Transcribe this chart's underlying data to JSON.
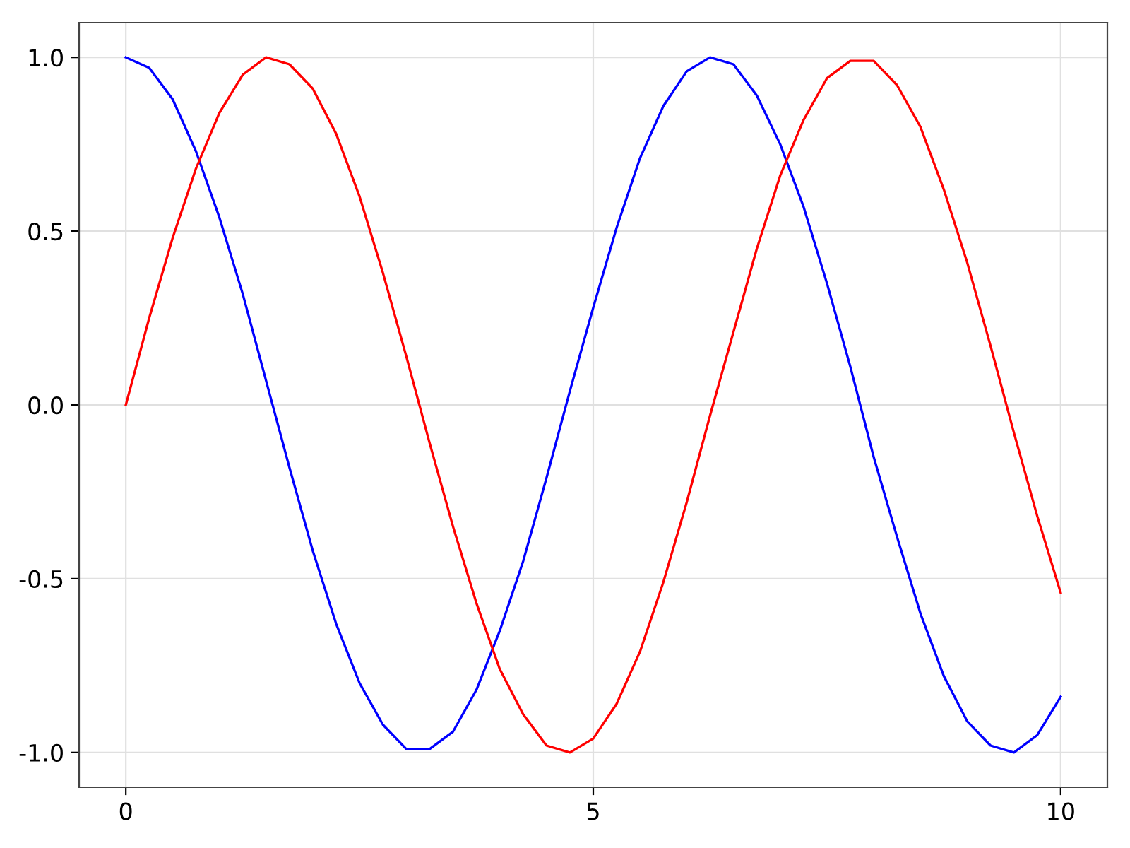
{
  "chart_data": {
    "type": "line",
    "x": [
      0,
      0.25,
      0.5,
      0.75,
      1,
      1.25,
      1.5,
      1.75,
      2,
      2.25,
      2.5,
      2.75,
      3,
      3.25,
      3.5,
      3.75,
      4,
      4.25,
      4.5,
      4.75,
      5,
      5.25,
      5.5,
      5.75,
      6,
      6.25,
      6.5,
      6.75,
      7,
      7.25,
      7.5,
      7.75,
      8,
      8.25,
      8.5,
      8.75,
      9,
      9.25,
      9.5,
      9.75,
      10
    ],
    "series": [
      {
        "color": "#0000ff",
        "values": [
          1.0,
          0.97,
          0.88,
          0.73,
          0.54,
          0.32,
          0.07,
          -0.18,
          -0.42,
          -0.63,
          -0.8,
          -0.92,
          -0.99,
          -0.99,
          -0.94,
          -0.82,
          -0.65,
          -0.45,
          -0.21,
          0.04,
          0.28,
          0.51,
          0.71,
          0.86,
          0.96,
          1.0,
          0.98,
          0.89,
          0.75,
          0.57,
          0.35,
          0.11,
          -0.15,
          -0.38,
          -0.6,
          -0.78,
          -0.91,
          -0.98,
          -1.0,
          -0.95,
          -0.84
        ]
      },
      {
        "color": "#ff0000",
        "values": [
          0.0,
          0.25,
          0.48,
          0.68,
          0.84,
          0.95,
          1.0,
          0.98,
          0.91,
          0.78,
          0.6,
          0.38,
          0.14,
          -0.11,
          -0.35,
          -0.57,
          -0.76,
          -0.89,
          -0.98,
          -1.0,
          -0.96,
          -0.86,
          -0.71,
          -0.51,
          -0.28,
          -0.03,
          0.21,
          0.45,
          0.66,
          0.82,
          0.94,
          0.99,
          0.99,
          0.92,
          0.8,
          0.62,
          0.41,
          0.17,
          -0.08,
          -0.32,
          -0.54
        ]
      }
    ],
    "xlim": [
      -0.5,
      10.5
    ],
    "xticks": [
      0,
      5,
      10
    ],
    "ylim": [
      -1.1,
      1.1
    ],
    "yticks": [
      {
        "value": -1,
        "label": "-1.0"
      },
      {
        "value": -0.5,
        "label": "-0.5"
      },
      {
        "value": 0,
        "label": "0.0"
      },
      {
        "value": 0.5,
        "label": "0.5"
      },
      {
        "value": 1,
        "label": "1.0"
      }
    ],
    "grid": true,
    "line_style": "solid"
  }
}
